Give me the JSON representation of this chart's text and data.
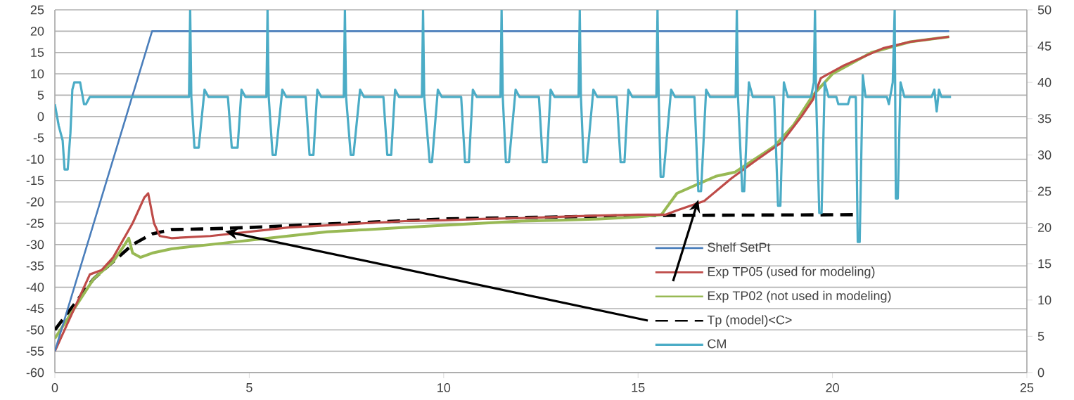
{
  "chart_data": {
    "type": "line",
    "xlim": [
      0,
      25
    ],
    "xticks": [
      0,
      5,
      10,
      15,
      20,
      25
    ],
    "ylim": [
      -60,
      25
    ],
    "yticks": [
      -60,
      -55,
      -50,
      -45,
      -40,
      -35,
      -30,
      -25,
      -20,
      -15,
      -10,
      -5,
      0,
      5,
      10,
      15,
      20,
      25
    ],
    "y2lim": [
      0,
      50
    ],
    "y2ticks": [
      0,
      5,
      10,
      15,
      20,
      25,
      30,
      35,
      40,
      45,
      50
    ],
    "grid": "y",
    "legend": "bottom right",
    "series": [
      {
        "name": "Shelf SetPt",
        "color": "#4a7ebb",
        "x": [
          0,
          2.5,
          23
        ],
        "values": [
          -55,
          20,
          20
        ]
      },
      {
        "name": "Exp TP05 (used for modeling)",
        "color": "#be4b48",
        "x": [
          0,
          0.5,
          0.9,
          1.2,
          1.5,
          2,
          2.3,
          2.4,
          2.55,
          2.7,
          3,
          4,
          5,
          6,
          7,
          8,
          9,
          10,
          11,
          12,
          13,
          14,
          15,
          15.7,
          16,
          16.7,
          17.4,
          18,
          18.7,
          19.2,
          19.5,
          19.7,
          20.3,
          21.3,
          22,
          23
        ],
        "values": [
          -55,
          -45,
          -37,
          -36,
          -33,
          -25,
          -19,
          -18,
          -25,
          -28,
          -28.5,
          -28,
          -27,
          -26,
          -25.5,
          -25,
          -24.5,
          -24.3,
          -24,
          -23.8,
          -23.5,
          -23.2,
          -23,
          -23,
          -22,
          -19.8,
          -14.5,
          -10.5,
          -6,
          0,
          4,
          9,
          12,
          16,
          17.5,
          18.7
        ]
      },
      {
        "name": "Exp TP02 (not used in modeling)",
        "color": "#98b954",
        "x": [
          0,
          0.5,
          1,
          1.5,
          1.8,
          1.9,
          2,
          2.2,
          2.5,
          3,
          4,
          5,
          6,
          7,
          8,
          9,
          10,
          11,
          12,
          13,
          14,
          15,
          15.6,
          16,
          16.5,
          17,
          17.5,
          18,
          18.5,
          19,
          19.5,
          20,
          21,
          22,
          23
        ],
        "values": [
          -52,
          -45,
          -38,
          -34,
          -30,
          -28.5,
          -32,
          -33,
          -32,
          -31,
          -30,
          -29,
          -28,
          -27,
          -26.5,
          -26,
          -25.5,
          -25,
          -24.5,
          -24.3,
          -24,
          -23.5,
          -23,
          -18,
          -16,
          -14,
          -13,
          -10,
          -7,
          -2,
          5,
          10,
          15,
          17.5,
          18.7
        ]
      },
      {
        "name": "Tp (model)<C>",
        "color": "#000000",
        "line_style": "dashed",
        "x": [
          0,
          0.5,
          1,
          1.5,
          2,
          2.5,
          3,
          4,
          5,
          10,
          15,
          20.6
        ],
        "values": [
          -50,
          -44,
          -38,
          -34,
          -30,
          -27.5,
          -26.5,
          -26.3,
          -26,
          -24,
          -23.2,
          -23
        ]
      },
      {
        "name": "CM",
        "color": "#4bacc6",
        "axis": "y2",
        "x": [
          0,
          0.1,
          0.2,
          0.25,
          0.33,
          0.4,
          0.45,
          0.5,
          0.65,
          0.75,
          0.8,
          0.9,
          3.45,
          3.48,
          3.51,
          3.59,
          3.7,
          3.85,
          3.95,
          4.45,
          4.55,
          4.7,
          4.8,
          4.9,
          5.44,
          5.47,
          5.5,
          5.6,
          5.68,
          5.85,
          5.95,
          6.45,
          6.55,
          6.65,
          6.75,
          6.85,
          7.43,
          7.46,
          7.49,
          7.61,
          7.68,
          7.85,
          7.95,
          8.45,
          8.55,
          8.65,
          8.75,
          8.85,
          9.44,
          9.47,
          9.5,
          9.64,
          9.7,
          9.85,
          9.95,
          10.45,
          10.55,
          10.65,
          10.75,
          10.85,
          11.46,
          11.49,
          11.52,
          11.6,
          11.68,
          11.85,
          11.95,
          12.45,
          12.55,
          12.65,
          12.75,
          12.85,
          13.47,
          13.5,
          13.53,
          13.6,
          13.68,
          13.85,
          13.95,
          14.45,
          14.55,
          14.65,
          14.75,
          14.85,
          15.47,
          15.5,
          15.53,
          15.58,
          15.65,
          15.85,
          15.95,
          16.45,
          16.55,
          16.62,
          16.75,
          16.85,
          17.51,
          17.54,
          17.57,
          17.68,
          17.73,
          17.85,
          17.95,
          18.5,
          18.6,
          18.66,
          18.75,
          18.85,
          19.45,
          19.52,
          19.55,
          19.58,
          19.66,
          19.72,
          19.8,
          19.9,
          20.1,
          20.15,
          20.4,
          20.45,
          20.6,
          20.65,
          20.7,
          20.78,
          20.85,
          21.4,
          21.45,
          21.55,
          21.6,
          21.63,
          21.68,
          21.75,
          21.85,
          22.55,
          22.62,
          22.68,
          22.74,
          22.8,
          23.05
        ],
        "values": [
          37,
          34,
          32,
          28,
          28,
          33,
          39,
          40,
          40,
          37,
          37,
          38,
          38,
          50,
          38,
          31,
          31,
          39,
          38,
          38,
          31,
          31,
          39,
          38,
          38,
          50,
          38,
          30,
          30,
          39,
          38,
          38,
          30,
          30,
          39,
          38,
          38,
          50,
          38,
          30,
          30,
          39,
          38,
          38,
          30,
          30,
          39,
          38,
          38,
          50,
          38,
          29,
          29,
          39,
          38,
          38,
          29,
          29,
          39,
          38,
          38,
          50,
          38,
          29,
          29,
          39,
          38,
          38,
          29,
          29,
          39,
          38,
          38,
          50,
          38,
          29,
          29,
          39,
          38,
          38,
          29,
          29,
          39,
          38,
          38,
          50,
          38,
          27,
          27,
          39,
          38,
          38,
          25,
          25,
          39,
          38,
          38,
          50,
          38,
          25,
          25,
          40,
          38,
          38,
          23,
          23,
          40,
          38,
          38,
          40,
          50,
          38,
          22,
          22,
          40,
          38,
          38,
          37,
          37,
          38,
          38,
          18,
          18,
          41,
          38,
          38,
          37,
          40,
          50,
          24,
          24,
          40,
          38,
          38,
          39,
          36,
          39,
          38,
          38
        ]
      }
    ]
  }
}
